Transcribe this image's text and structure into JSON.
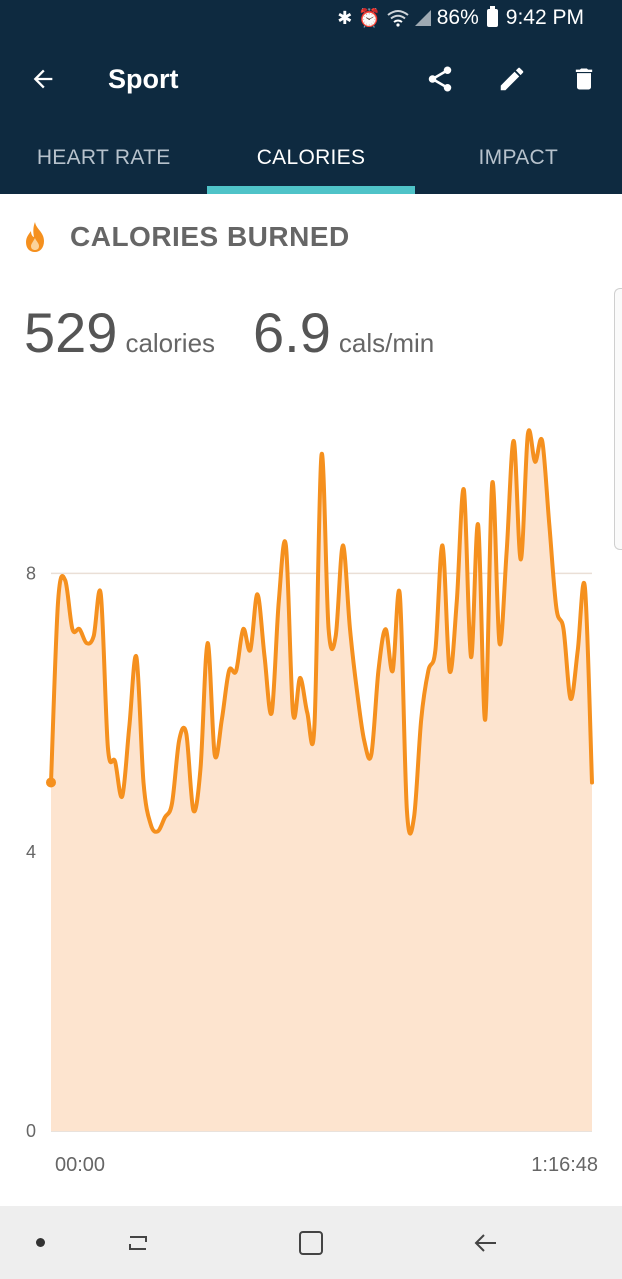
{
  "status_bar": {
    "battery_percent": "86%",
    "time": "9:42 PM",
    "icons": [
      "bluetooth-icon",
      "alarm-icon",
      "wifi-icon",
      "signal-icon",
      "battery-icon"
    ]
  },
  "app_bar": {
    "title": "Sport",
    "actions": [
      "share-icon",
      "edit-icon",
      "delete-icon"
    ]
  },
  "tabs": [
    {
      "label": "HEART RATE",
      "active": false
    },
    {
      "label": "CALORIES",
      "active": true
    },
    {
      "label": "IMPACT",
      "active": false
    }
  ],
  "section": {
    "title": "CALORIES BURNED",
    "icon": "flame-icon"
  },
  "stats": {
    "total_value": "529",
    "total_unit": "calories",
    "rate_value": "6.9",
    "rate_unit": "cals/min"
  },
  "colors": {
    "header_bg": "#0e2a40",
    "tab_indicator": "#4fc3c8",
    "line": "#f5901e",
    "fill": "#fde4cf"
  },
  "chart_data": {
    "type": "area",
    "x_start_label": "00:00",
    "x_end_label": "1:16:48",
    "y_ticks": [
      0,
      4,
      8
    ],
    "ylim": [
      0,
      10.2
    ],
    "grid": true,
    "y": [
      5.0,
      7.6,
      7.9,
      7.2,
      7.2,
      7.0,
      7.1,
      7.7,
      5.5,
      5.3,
      4.8,
      5.8,
      6.8,
      5.0,
      4.4,
      4.3,
      4.5,
      4.7,
      5.6,
      5.7,
      4.6,
      5.2,
      7.0,
      5.4,
      5.9,
      6.6,
      6.6,
      7.2,
      6.9,
      7.7,
      6.8,
      6.0,
      7.6,
      8.4,
      6.0,
      6.5,
      6.0,
      5.8,
      9.7,
      7.2,
      7.1,
      8.4,
      7.2,
      6.3,
      5.6,
      5.4,
      6.6,
      7.2,
      6.6,
      7.7,
      4.6,
      4.5,
      5.9,
      6.6,
      6.9,
      8.4,
      6.6,
      7.6,
      9.2,
      6.8,
      8.7,
      5.9,
      9.3,
      7.0,
      8.3,
      9.9,
      8.2,
      10.0,
      9.6,
      9.9,
      8.7,
      7.5,
      7.2,
      6.2,
      6.9,
      7.8,
      5.0
    ]
  },
  "nav_bar": [
    "recent-apps-icon",
    "home-icon",
    "back-icon"
  ]
}
